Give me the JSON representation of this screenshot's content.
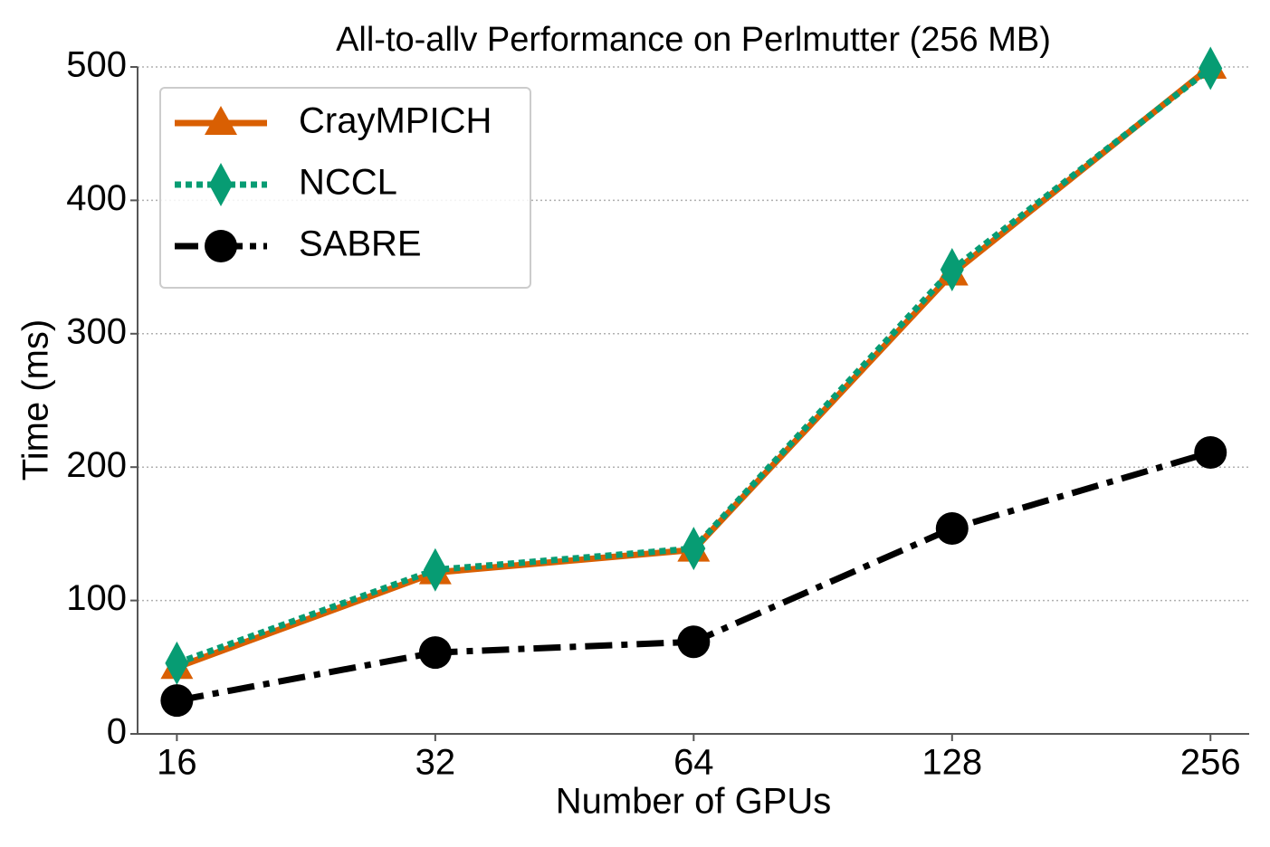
{
  "chart_data": {
    "type": "line",
    "title": "All-to-allv Performance on Perlmutter (256 MB)",
    "x_label": "Number of GPUs",
    "y_label": "Time (ms)",
    "x": [
      16,
      32,
      64,
      128,
      256
    ],
    "xscale": "log2",
    "xlim": [
      14.4,
      284
    ],
    "xticks": [
      16,
      32,
      64,
      128,
      256
    ],
    "ylim": [
      0,
      500
    ],
    "yticks": [
      0,
      100,
      200,
      300,
      400,
      500
    ],
    "grid": true,
    "legend": "upper left",
    "series": [
      {
        "name": "CrayMPICH",
        "color": "#d95f02",
        "marker": "triangle",
        "linestyle": "solid",
        "values": [
          50,
          121,
          138,
          345,
          500
        ]
      },
      {
        "name": "NCCL",
        "color": "#079c73",
        "marker": "diamond",
        "linestyle": "dotted",
        "values": [
          53,
          123,
          139,
          348,
          499
        ]
      },
      {
        "name": "SABRE",
        "color": "#000000",
        "marker": "circle",
        "linestyle": "dashdot",
        "values": [
          25,
          61,
          69,
          154,
          211
        ]
      }
    ]
  }
}
